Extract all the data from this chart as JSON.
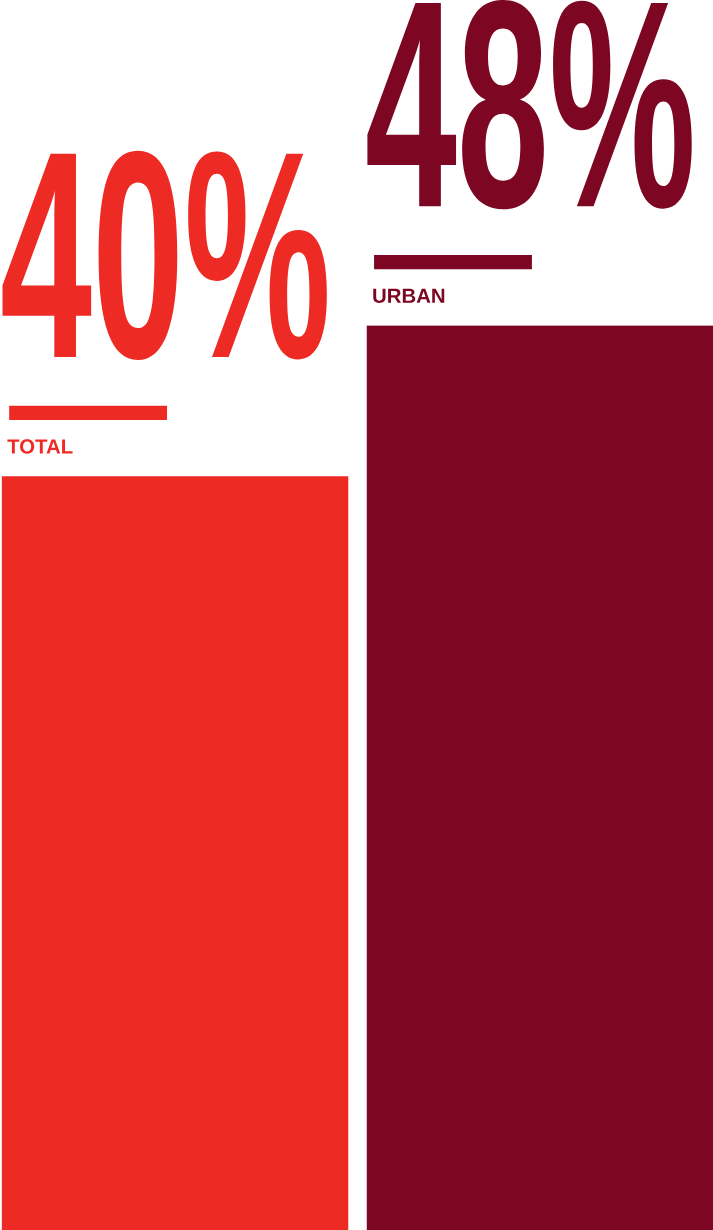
{
  "chart_data": {
    "type": "bar",
    "categories": [
      "TOTAL",
      "URBAN"
    ],
    "values": [
      40,
      48
    ],
    "colors": [
      "#ee2a24",
      "#7d0722"
    ],
    "value_labels": [
      "40%",
      "48%"
    ]
  }
}
